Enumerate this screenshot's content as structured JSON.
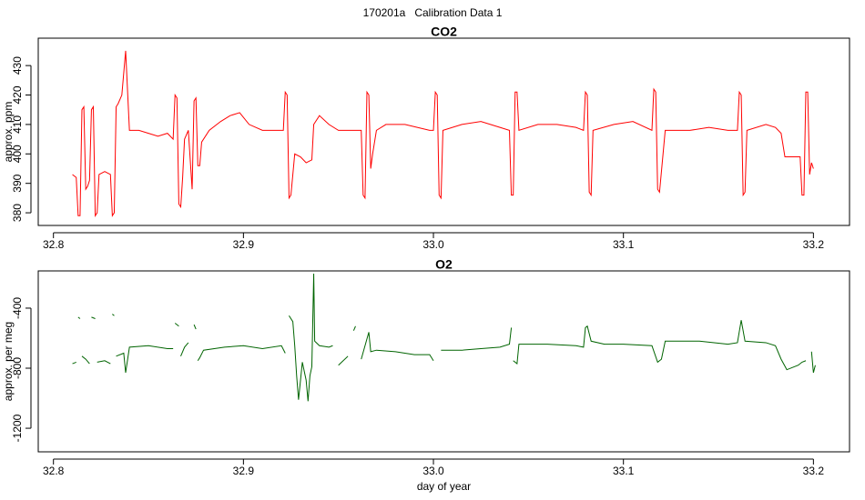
{
  "title": "170201a   Calibration Data 1",
  "chart_data": [
    {
      "type": "line",
      "title": "CO2",
      "ylabel": "approx. ppm",
      "xlim": [
        32.792,
        33.219
      ],
      "xticks": [
        32.8,
        32.9,
        {
          "value": 33,
          "label": "33.0"
        },
        33.1,
        33.2
      ],
      "ylim": [
        375.7,
        439.3
      ],
      "yticks": [
        380,
        390,
        400,
        410,
        420,
        430
      ],
      "series": [
        {
          "name": "CO2",
          "color": "#ff0000",
          "x": [
            32.81,
            32.812,
            32.813,
            32.814,
            32.815,
            32.816,
            32.817,
            32.818,
            32.819,
            32.82,
            32.821,
            32.822,
            32.823,
            32.824,
            32.827,
            32.83,
            32.831,
            32.832,
            32.833,
            32.834,
            32.836,
            32.838,
            32.84,
            32.845,
            32.85,
            32.855,
            32.86,
            32.863,
            32.864,
            32.865,
            32.866,
            32.867,
            32.868,
            32.869,
            32.871,
            32.873,
            32.874,
            32.875,
            32.876,
            32.877,
            32.878,
            32.882,
            32.888,
            32.893,
            32.898,
            32.903,
            32.91,
            32.918,
            32.921,
            32.922,
            32.923,
            32.924,
            32.925,
            32.927,
            32.93,
            32.933,
            32.936,
            32.937,
            32.94,
            32.945,
            32.95,
            32.955,
            32.96,
            32.962,
            32.963,
            32.964,
            32.965,
            32.966,
            32.967,
            32.968,
            32.97,
            32.975,
            32.985,
            32.998,
            33.0,
            33.001,
            33.002,
            33.003,
            33.004,
            33.005,
            33.015,
            33.025,
            33.035,
            33.04,
            33.041,
            33.042,
            33.043,
            33.044,
            33.045,
            33.055,
            33.065,
            33.075,
            33.079,
            33.08,
            33.081,
            33.082,
            33.083,
            33.084,
            33.095,
            33.105,
            33.115,
            33.116,
            33.117,
            33.118,
            33.119,
            33.121,
            33.122,
            33.135,
            33.145,
            33.155,
            33.16,
            33.161,
            33.162,
            33.163,
            33.164,
            33.165,
            33.175,
            33.18,
            33.183,
            33.185,
            33.19,
            33.193,
            33.194,
            33.195,
            33.196,
            33.197,
            33.198,
            33.199,
            33.2
          ],
          "values": [
            393,
            392,
            379,
            379,
            415,
            416,
            388,
            389,
            391,
            415,
            416,
            379,
            380,
            393,
            394,
            393,
            379,
            380,
            416,
            417,
            420,
            435,
            408,
            408,
            407,
            406,
            407,
            405,
            420,
            419,
            383,
            382,
            392,
            405,
            408,
            388,
            418,
            419,
            396,
            396,
            404,
            408,
            411,
            413,
            414,
            410,
            408,
            408,
            408,
            421,
            420,
            385,
            386,
            400,
            399,
            397,
            398,
            410,
            413,
            410,
            408,
            408,
            408,
            408,
            386,
            385,
            421,
            420,
            395,
            400,
            408,
            410,
            410,
            408,
            408,
            421,
            420,
            386,
            385,
            408,
            410,
            411,
            409,
            408,
            386,
            386,
            421,
            421,
            408,
            410,
            410,
            409,
            408,
            421,
            420,
            387,
            386,
            408,
            410,
            411,
            408,
            422,
            421,
            388,
            387,
            401,
            408,
            408,
            409,
            408,
            408,
            421,
            420,
            386,
            387,
            408,
            410,
            409,
            407,
            399,
            399,
            399,
            386,
            386,
            421,
            421,
            393,
            397,
            395
          ]
        }
      ]
    },
    {
      "type": "line",
      "title": "O2",
      "ylabel": "approx. per meg",
      "xlabel": "day of year",
      "xlim": [
        32.792,
        33.219
      ],
      "xticks": [
        32.8,
        32.9,
        {
          "value": 33,
          "label": "33.0"
        },
        33.1,
        33.2
      ],
      "ylim": [
        -1357,
        -152
      ],
      "yticks": [
        -400,
        -800,
        -1200
      ],
      "series": [
        {
          "name": "O2",
          "color": "#006400",
          "x": [
            32.81,
            32.812,
            32.8125,
            32.813,
            32.814,
            32.8145,
            32.815,
            32.817,
            32.819,
            32.8195,
            32.82,
            32.822,
            32.8225,
            32.823,
            32.827,
            32.83,
            32.8305,
            32.831,
            32.832,
            32.8325,
            32.833,
            32.837,
            32.838,
            32.84,
            32.85,
            32.86,
            32.863,
            32.8635,
            32.864,
            32.866,
            32.8665,
            32.867,
            32.869,
            32.871,
            32.8725,
            32.874,
            32.875,
            32.8755,
            32.876,
            32.877,
            32.879,
            32.89,
            32.9,
            32.91,
            32.92,
            32.922,
            32.923,
            32.924,
            32.926,
            32.927,
            32.928,
            32.929,
            32.931,
            32.933,
            32.934,
            32.935,
            32.936,
            32.937,
            32.9375,
            32.94,
            32.945,
            32.947,
            32.948,
            32.95,
            32.955,
            32.9565,
            32.958,
            32.959,
            32.9605,
            32.962,
            32.964,
            32.966,
            32.967,
            32.97,
            32.98,
            32.99,
            32.998,
            33.0,
            33.001,
            33.002,
            33.003,
            33.004,
            33.015,
            33.025,
            33.035,
            33.04,
            33.041,
            33.0415,
            33.042,
            33.044,
            33.045,
            33.06,
            33.075,
            33.079,
            33.08,
            33.081,
            33.083,
            33.09,
            33.1,
            33.115,
            33.118,
            33.12,
            33.122,
            33.14,
            33.155,
            33.16,
            33.162,
            33.164,
            33.175,
            33.18,
            33.183,
            33.186,
            33.192,
            33.194,
            33.196,
            33.1965,
            33.197,
            33.198,
            33.199,
            33.2,
            33.201
          ],
          "values": [
            -770,
            -760,
            null,
            -460,
            -470,
            null,
            -720,
            -740,
            -770,
            null,
            -460,
            -470,
            null,
            -760,
            -750,
            -770,
            null,
            -440,
            -450,
            null,
            -720,
            -700,
            -830,
            -660,
            -650,
            -670,
            -670,
            null,
            -500,
            -520,
            null,
            -720,
            -660,
            -630,
            null,
            -510,
            -540,
            null,
            -750,
            -730,
            -680,
            -660,
            -650,
            -670,
            -650,
            -700,
            null,
            -450,
            -490,
            -650,
            -850,
            -1010,
            -760,
            -880,
            -1020,
            -850,
            -790,
            -170,
            -620,
            -650,
            -660,
            -650,
            null,
            -780,
            -720,
            null,
            -550,
            -520,
            null,
            -740,
            -650,
            -560,
            -690,
            -680,
            -690,
            -710,
            -710,
            -750,
            null,
            -520,
            null,
            -680,
            -680,
            -670,
            -660,
            -640,
            -530,
            null,
            -750,
            -770,
            -640,
            -640,
            -650,
            -660,
            -530,
            -520,
            -620,
            -640,
            -640,
            -650,
            -760,
            -740,
            -620,
            -620,
            -640,
            -630,
            -480,
            -620,
            -630,
            -650,
            -740,
            -810,
            -780,
            -760,
            -750,
            null,
            -530,
            null,
            -690,
            -830,
            -780
          ]
        }
      ]
    }
  ]
}
